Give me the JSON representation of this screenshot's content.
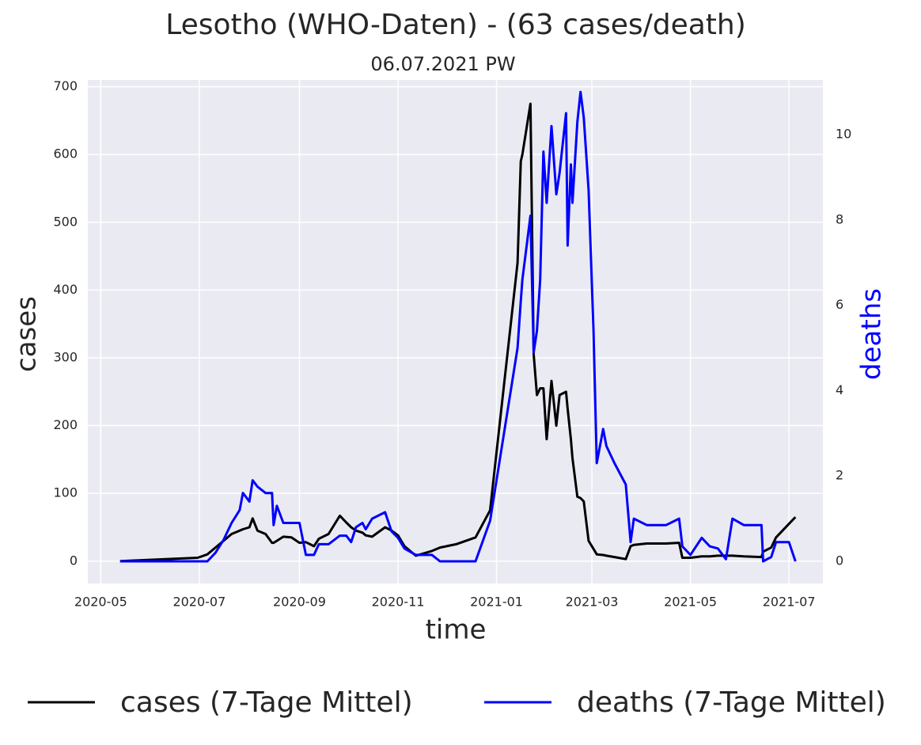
{
  "chart_data": {
    "type": "line",
    "title": "Lesotho (WHO-Daten) - (63 cases/death)",
    "subtitle": "06.07.2021 PW",
    "xlabel": "time",
    "ylabel": "cases",
    "y2label": "deaths",
    "y2label_color": "#0000ff",
    "grid": true,
    "legend": "bottom",
    "xlim": [
      "2020-04-23",
      "2021-07-22"
    ],
    "xticks": [
      "2020-05",
      "2020-07",
      "2020-09",
      "2020-11",
      "2021-01",
      "2021-03",
      "2021-05",
      "2021-07"
    ],
    "ylim": [
      -33,
      710
    ],
    "yticks": [
      0,
      100,
      200,
      300,
      400,
      500,
      600,
      700
    ],
    "y2lim": [
      -0.52,
      11.28
    ],
    "y2ticks": [
      0,
      2,
      4,
      6,
      8,
      10
    ],
    "x": [
      "2020-05-13",
      "2020-06-30",
      "2020-07-06",
      "2020-07-11",
      "2020-07-16",
      "2020-07-21",
      "2020-07-26",
      "2020-07-28",
      "2020-08-01",
      "2020-08-03",
      "2020-08-06",
      "2020-08-11",
      "2020-08-15",
      "2020-08-16",
      "2020-08-18",
      "2020-08-22",
      "2020-08-27",
      "2020-09-01",
      "2020-09-05",
      "2020-09-10",
      "2020-09-13",
      "2020-09-19",
      "2020-09-26",
      "2020-09-30",
      "2020-10-03",
      "2020-10-06",
      "2020-10-10",
      "2020-10-12",
      "2020-10-16",
      "2020-10-24",
      "2020-10-28",
      "2020-11-01",
      "2020-11-05",
      "2020-11-12",
      "2020-11-22",
      "2020-11-27",
      "2020-12-07",
      "2020-12-19",
      "2020-12-28",
      "2021-01-14",
      "2021-01-16",
      "2021-01-17",
      "2021-01-22",
      "2021-01-24",
      "2021-01-26",
      "2021-01-28",
      "2021-01-30",
      "2021-02-01",
      "2021-02-04",
      "2021-02-07",
      "2021-02-09",
      "2021-02-13",
      "2021-02-14",
      "2021-02-16",
      "2021-02-17",
      "2021-02-20",
      "2021-02-22",
      "2021-02-24",
      "2021-02-27",
      "2021-03-02",
      "2021-03-04",
      "2021-03-08",
      "2021-03-10",
      "2021-03-15",
      "2021-03-22",
      "2021-03-25",
      "2021-03-27",
      "2021-04-04",
      "2021-04-16",
      "2021-04-24",
      "2021-04-26",
      "2021-05-01",
      "2021-05-08",
      "2021-05-13",
      "2021-05-18",
      "2021-05-23",
      "2021-05-27",
      "2021-06-03",
      "2021-06-14",
      "2021-06-15",
      "2021-06-20",
      "2021-06-23",
      "2021-07-01",
      "2021-07-05"
    ],
    "series": [
      {
        "name": "cases (7-Tage Mittel)",
        "color": "#000000",
        "axis": "y",
        "values": [
          0,
          5,
          10,
          20,
          30,
          40,
          45,
          47,
          50,
          63,
          45,
          40,
          27,
          27,
          30,
          36,
          35,
          27,
          28,
          22,
          33,
          40,
          67,
          57,
          50,
          45,
          42,
          38,
          36,
          50,
          45,
          38,
          22,
          8,
          15,
          20,
          25,
          35,
          75,
          440,
          590,
          600,
          675,
          305,
          245,
          255,
          255,
          180,
          266,
          200,
          245,
          250,
          225,
          180,
          152,
          95,
          93,
          88,
          30,
          18,
          10,
          9,
          8,
          6,
          3,
          22,
          24,
          26,
          26,
          27,
          5,
          5,
          7,
          7,
          8,
          8,
          8,
          7,
          6,
          14,
          20,
          35,
          55,
          65
        ]
      },
      {
        "name": "deaths (7-Tage Mittel)",
        "color": "#0000ff",
        "axis": "y2",
        "values": [
          0,
          0,
          0,
          0.2,
          0.5,
          0.9,
          1.2,
          1.6,
          1.4,
          1.9,
          1.75,
          1.6,
          1.6,
          0.85,
          1.3,
          0.9,
          0.9,
          0.9,
          0.15,
          0.15,
          0.4,
          0.4,
          0.6,
          0.6,
          0.45,
          0.8,
          0.9,
          0.75,
          1.0,
          1.15,
          0.7,
          0.55,
          0.3,
          0.15,
          0.15,
          0,
          0,
          0,
          0.95,
          5.0,
          6.1,
          6.6,
          8.1,
          4.9,
          5.4,
          6.6,
          9.6,
          8.4,
          10.2,
          8.6,
          9.1,
          10.5,
          7.4,
          9.3,
          8.4,
          10.3,
          11.0,
          10.4,
          8.7,
          5.4,
          2.3,
          3.1,
          2.7,
          2.3,
          1.8,
          0.45,
          1.0,
          0.85,
          0.85,
          1.0,
          0.35,
          0.15,
          0.55,
          0.35,
          0.3,
          0.05,
          1.0,
          0.85,
          0.85,
          0,
          0.1,
          0.45,
          0.45,
          0
        ]
      }
    ]
  }
}
